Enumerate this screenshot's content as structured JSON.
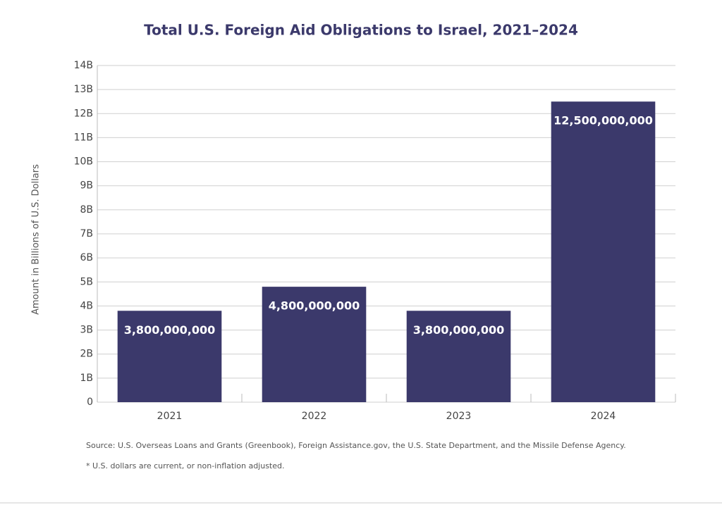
{
  "chart_data": {
    "type": "bar",
    "title": "Total U.S. Foreign Aid Obligations to Israel, 2021–2024",
    "y_label": "Amount in Billions of U.S. Dollars",
    "categories": [
      "2021",
      "2022",
      "2023",
      "2024"
    ],
    "values": [
      3800000000,
      4800000000,
      3800000000,
      12500000000
    ],
    "value_labels": [
      "3,800,000,000",
      "4,800,000,000",
      "3,800,000,000",
      "12,500,000,000"
    ],
    "color": "#3b396b",
    "ylim": [
      0,
      14000000000
    ],
    "yticks": [
      0,
      {
        "value": 1000000000,
        "label": "1B"
      },
      {
        "value": 2000000000,
        "label": "2B"
      },
      {
        "value": 3000000000,
        "label": "3B"
      },
      {
        "value": 4000000000,
        "label": "4B"
      },
      {
        "value": 5000000000,
        "label": "5B"
      },
      {
        "value": 6000000000,
        "label": "6B"
      },
      {
        "value": 7000000000,
        "label": "7B"
      },
      {
        "value": 8000000000,
        "label": "8B"
      },
      {
        "value": 9000000000,
        "label": "9B"
      },
      {
        "value": 10000000000,
        "label": "10B"
      },
      {
        "value": 11000000000,
        "label": "11B"
      },
      {
        "value": 12000000000,
        "label": "12B"
      },
      {
        "value": 13000000000,
        "label": "13B"
      },
      {
        "value": 14000000000,
        "label": "14B"
      }
    ],
    "grid": true,
    "source": "Source: U.S. Overseas Loans and Grants (Greenbook), Foreign Assistance.gov, the U.S. State Department, and the Missile Defense Agency.",
    "note": "* U.S. dollars are current, or non-inflation adjusted."
  }
}
